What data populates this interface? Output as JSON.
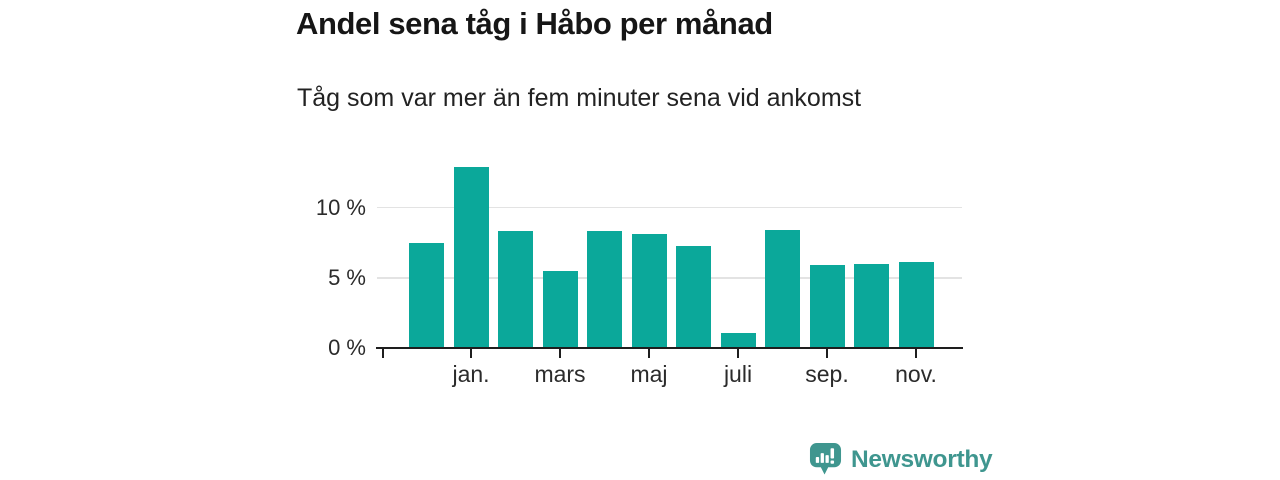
{
  "header": {
    "title": "Andel sena tåg i Håbo per månad",
    "subtitle": "Tåg som var mer än fem minuter sena vid ankomst"
  },
  "chart_data": {
    "type": "bar",
    "title": "Andel sena tåg i Håbo per månad",
    "subtitle": "Tåg som var mer än fem minuter sena vid ankomst",
    "unit": "%",
    "bars": [
      {
        "tick_label": "",
        "value": 7.5
      },
      {
        "tick_label": "jan.",
        "value": 12.9
      },
      {
        "tick_label": "",
        "value": 8.3
      },
      {
        "tick_label": "mars",
        "value": 5.5
      },
      {
        "tick_label": "",
        "value": 8.3
      },
      {
        "tick_label": "maj",
        "value": 8.1
      },
      {
        "tick_label": "",
        "value": 7.3
      },
      {
        "tick_label": "juli",
        "value": 1.1
      },
      {
        "tick_label": "",
        "value": 8.4
      },
      {
        "tick_label": "sep.",
        "value": 5.9
      },
      {
        "tick_label": "",
        "value": 6.0
      },
      {
        "tick_label": "nov.",
        "value": 6.1
      }
    ],
    "y_ticks": [
      {
        "value": 0,
        "label": "0 %"
      },
      {
        "value": 5,
        "label": "5 %"
      },
      {
        "value": 10,
        "label": "10 %"
      }
    ],
    "ylim": [
      0,
      14.1
    ],
    "grid": true,
    "legend": false,
    "bar_color": "#0ba89a"
  },
  "footer": {
    "brand": "Newsworthy"
  },
  "colors": {
    "bar": "#0ba89a",
    "brand": "#3f968f",
    "grid": "#e3e3e3",
    "axis": "#1e1e1e",
    "title_text": "#161616"
  }
}
